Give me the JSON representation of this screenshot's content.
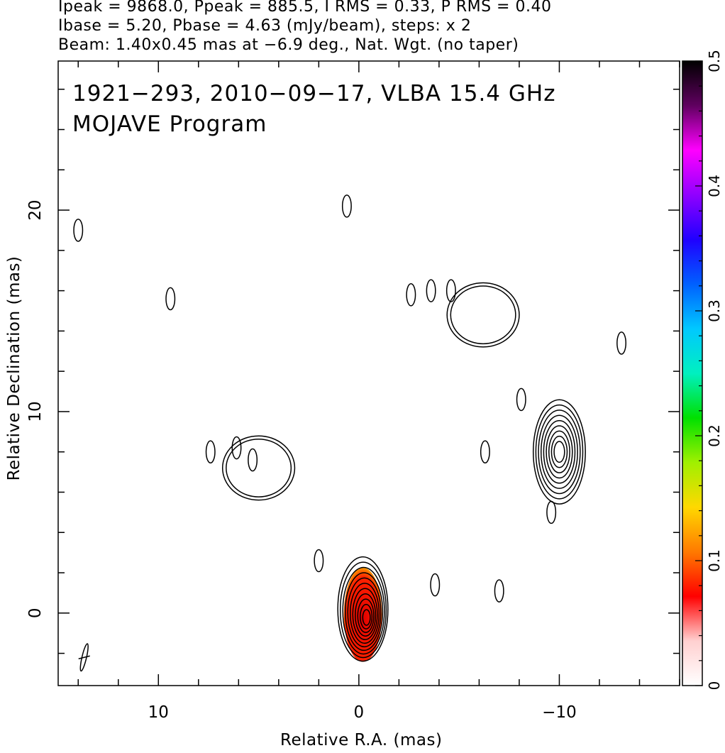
{
  "header": {
    "line1": "Ipeak = 9868.0, Ppeak = 885.5, I RMS = 0.33, P RMS = 0.40",
    "line2": "Ibase = 5.20, Pbase = 4.63 (mJy/beam), steps: x 2",
    "line3": "Beam: 1.40x0.45 mas at −6.9 deg., Nat. Wgt. (no taper)"
  },
  "chart_data": {
    "type": "heatmap",
    "title": "1921−293, 2010−09−17, VLBA 15.4 GHz",
    "subtitle": "MOJAVE Program",
    "xlabel": "Relative R.A. (mas)",
    "ylabel": "Relative Declination (mas)",
    "xlim": [
      15,
      -16
    ],
    "ylim": [
      -3.6,
      27.4
    ],
    "x_ticks": [
      10,
      0,
      -10
    ],
    "x_tick_labels": [
      "10",
      "0",
      "−10"
    ],
    "y_ticks": [
      0,
      10,
      20
    ],
    "y_tick_labels": [
      "0",
      "10",
      "20"
    ],
    "colorbar": {
      "min": 0,
      "max": 0.5,
      "ticks": [
        0,
        0.1,
        0.2,
        0.3,
        0.4,
        0.5
      ],
      "tick_labels": [
        "0",
        "0.1",
        "0.2",
        "0.3",
        "0.4",
        "0.5"
      ],
      "stops": [
        "#ffffff",
        "#ffd0d0",
        "#ff0000",
        "#ff7a00",
        "#ffd800",
        "#a0f000",
        "#00e000",
        "#00f0c0",
        "#00c8ff",
        "#0060ff",
        "#2000ff",
        "#9000ff",
        "#ff00ff",
        "#600060",
        "#000000"
      ]
    },
    "series": [
      {
        "kind": "core",
        "x": -0.2,
        "y": 0.2,
        "peak_mjy_per_beam": 9868.0
      },
      {
        "kind": "jet-knot",
        "x": 5.0,
        "y": 7.2
      },
      {
        "kind": "jet-knot",
        "x": -10.0,
        "y": 8.0
      },
      {
        "kind": "jet-knot",
        "x": -6.2,
        "y": 14.8
      }
    ],
    "beam": {
      "major_mas": 1.4,
      "minor_mas": 0.45,
      "pa_deg": -6.9,
      "x": 13.7,
      "y": -2.2
    },
    "grid": false
  }
}
